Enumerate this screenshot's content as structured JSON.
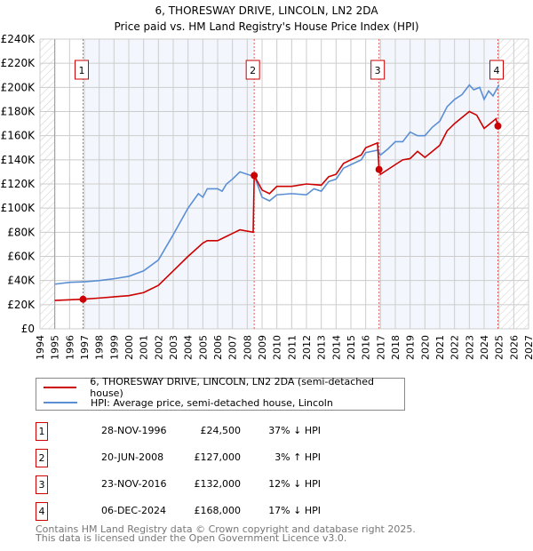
{
  "title": "6, THORESWAY DRIVE, LINCOLN, LN2 2DA",
  "subtitle": "Price paid vs. HM Land Registry's House Price Index (HPI)",
  "chart_data": {
    "type": "line",
    "title": "6, THORESWAY DRIVE, LINCOLN, LN2 2DA",
    "subtitle": "Price paid vs. HM Land Registry's House Price Index (HPI)",
    "xlim": [
      1994,
      2027
    ],
    "ylim": [
      0,
      240000
    ],
    "x_ticks": [
      "1994",
      "1995",
      "1996",
      "1997",
      "1998",
      "1999",
      "2000",
      "2001",
      "2002",
      "2003",
      "2004",
      "2005",
      "2006",
      "2007",
      "2008",
      "2009",
      "2010",
      "2011",
      "2012",
      "2013",
      "2014",
      "2015",
      "2016",
      "2017",
      "2018",
      "2019",
      "2020",
      "2021",
      "2022",
      "2023",
      "2024",
      "2025",
      "2026",
      "2027"
    ],
    "y_ticks": [
      {
        "v": 0,
        "label": "£0"
      },
      {
        "v": 20000,
        "label": "£20K"
      },
      {
        "v": 40000,
        "label": "£40K"
      },
      {
        "v": 60000,
        "label": "£60K"
      },
      {
        "v": 80000,
        "label": "£80K"
      },
      {
        "v": 100000,
        "label": "£100K"
      },
      {
        "v": 120000,
        "label": "£120K"
      },
      {
        "v": 140000,
        "label": "£140K"
      },
      {
        "v": 160000,
        "label": "£160K"
      },
      {
        "v": 180000,
        "label": "£180K"
      },
      {
        "v": 200000,
        "label": "£200K"
      },
      {
        "v": 220000,
        "label": "£220K"
      },
      {
        "v": 240000,
        "label": "£240K"
      }
    ],
    "grid": true,
    "series": [
      {
        "name": "6, THORESWAY DRIVE, LINCOLN, LN2 2DA (semi-detached house)",
        "color": "#cc0000",
        "points": [
          [
            1995,
            23500
          ],
          [
            1996.9,
            24500
          ],
          [
            1998,
            25500
          ],
          [
            2000,
            27500
          ],
          [
            2001,
            30000
          ],
          [
            2002,
            36000
          ],
          [
            2003,
            48000
          ],
          [
            2004,
            60000
          ],
          [
            2005,
            71000
          ],
          [
            2005.3,
            73000
          ],
          [
            2006,
            73000
          ],
          [
            2007,
            79000
          ],
          [
            2007.5,
            82000
          ],
          [
            2008.4,
            80000
          ],
          [
            2008.47,
            127000
          ],
          [
            2009,
            115000
          ],
          [
            2009.5,
            112000
          ],
          [
            2010,
            118000
          ],
          [
            2011,
            118000
          ],
          [
            2012,
            120000
          ],
          [
            2013,
            119000
          ],
          [
            2013.5,
            126000
          ],
          [
            2014,
            128000
          ],
          [
            2014.5,
            137000
          ],
          [
            2015,
            140000
          ],
          [
            2015.7,
            144000
          ],
          [
            2016,
            150000
          ],
          [
            2016.8,
            154000
          ],
          [
            2016.9,
            132000
          ],
          [
            2017,
            128000
          ],
          [
            2018,
            136000
          ],
          [
            2018.5,
            140000
          ],
          [
            2019,
            141000
          ],
          [
            2019.5,
            147000
          ],
          [
            2020,
            142000
          ],
          [
            2020.5,
            147000
          ],
          [
            2021,
            152000
          ],
          [
            2021.5,
            164000
          ],
          [
            2022,
            170000
          ],
          [
            2022.5,
            175000
          ],
          [
            2023,
            180000
          ],
          [
            2023.5,
            177000
          ],
          [
            2024,
            166000
          ],
          [
            2024.5,
            171000
          ],
          [
            2024.8,
            174000
          ],
          [
            2024.93,
            168000
          ]
        ]
      },
      {
        "name": "HPI: Average price, semi-detached house, Lincoln",
        "color": "#5b8fd4",
        "points": [
          [
            1995,
            37000
          ],
          [
            1996,
            38500
          ],
          [
            1997,
            39000
          ],
          [
            1998,
            40000
          ],
          [
            1999,
            41500
          ],
          [
            2000,
            43500
          ],
          [
            2001,
            48000
          ],
          [
            2002,
            57000
          ],
          [
            2003,
            78000
          ],
          [
            2004,
            100000
          ],
          [
            2004.7,
            112000
          ],
          [
            2005,
            109000
          ],
          [
            2005.3,
            116000
          ],
          [
            2006,
            116000
          ],
          [
            2006.3,
            114000
          ],
          [
            2006.6,
            120000
          ],
          [
            2007,
            124000
          ],
          [
            2007.5,
            130000
          ],
          [
            2008,
            128000
          ],
          [
            2008.5,
            126000
          ],
          [
            2009,
            109000
          ],
          [
            2009.5,
            106000
          ],
          [
            2010,
            111000
          ],
          [
            2011,
            112000
          ],
          [
            2012,
            111000
          ],
          [
            2012.5,
            116000
          ],
          [
            2013,
            114000
          ],
          [
            2013.5,
            122000
          ],
          [
            2014,
            124000
          ],
          [
            2014.5,
            133000
          ],
          [
            2015,
            136000
          ],
          [
            2015.7,
            140000
          ],
          [
            2016,
            146000
          ],
          [
            2016.8,
            148000
          ],
          [
            2017,
            144000
          ],
          [
            2017.5,
            149000
          ],
          [
            2018,
            155000
          ],
          [
            2018.5,
            155000
          ],
          [
            2019,
            163000
          ],
          [
            2019.5,
            160000
          ],
          [
            2020,
            160000
          ],
          [
            2020.5,
            167000
          ],
          [
            2021,
            172000
          ],
          [
            2021.5,
            184000
          ],
          [
            2022,
            190000
          ],
          [
            2022.5,
            194000
          ],
          [
            2023,
            202000
          ],
          [
            2023.3,
            198000
          ],
          [
            2023.7,
            200000
          ],
          [
            2024,
            190000
          ],
          [
            2024.3,
            197000
          ],
          [
            2024.6,
            193000
          ],
          [
            2025,
            202000
          ]
        ]
      }
    ],
    "sales": [
      {
        "n": "1",
        "x": 1996.91,
        "price": 24500
      },
      {
        "n": "2",
        "x": 2008.47,
        "price": 127000
      },
      {
        "n": "3",
        "x": 2016.9,
        "price": 132000
      },
      {
        "n": "4",
        "x": 2024.93,
        "price": 168000
      }
    ],
    "legend_position": "bottom"
  },
  "legend": {
    "property": "6, THORESWAY DRIVE, LINCOLN, LN2 2DA (semi-detached house)",
    "hpi": "HPI: Average price, semi-detached house, Lincoln"
  },
  "table": [
    {
      "n": "1",
      "date": "28-NOV-1996",
      "price": "£24,500",
      "hpi": "37% ↓ HPI"
    },
    {
      "n": "2",
      "date": "20-JUN-2008",
      "price": "£127,000",
      "hpi": "3% ↑ HPI"
    },
    {
      "n": "3",
      "date": "23-NOV-2016",
      "price": "£132,000",
      "hpi": "12% ↓ HPI"
    },
    {
      "n": "4",
      "date": "06-DEC-2024",
      "price": "£168,000",
      "hpi": "17% ↓ HPI"
    }
  ],
  "footer": {
    "line1": "Contains HM Land Registry data © Crown copyright and database right 2025.",
    "line2": "This data is licensed under the Open Government Licence v3.0."
  }
}
